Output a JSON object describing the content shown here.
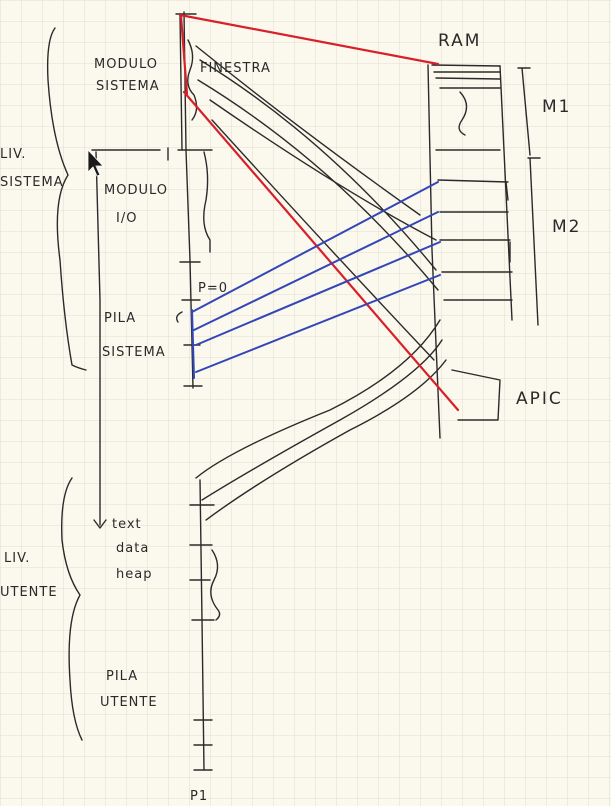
{
  "labels": {
    "modulo_sistema_1": "MODULO",
    "modulo_sistema_2": "SISTEMA",
    "finestra": "FINESTRA",
    "liv_sistema_1": "LIV.",
    "liv_sistema_2": "SISTEMA",
    "modulo_io_1": "MODULO",
    "modulo_io_2": "I/O",
    "p_zero": "P=0",
    "pila_sistema_1": "PILA",
    "pila_sistema_2": "SISTEMA",
    "ram": "RAM",
    "m1": "M1",
    "m2": "M2",
    "apic": "APIC",
    "text": "text",
    "data": "data",
    "heap": "heap",
    "liv_utente_1": "LIV.",
    "liv_utente_2": "UTENTE",
    "pila_utente_1": "PILA",
    "pila_utente_2": "UTENTE",
    "p1": "P1"
  },
  "colors": {
    "paper": "#fbf8ee",
    "grid": "#dcd6c4",
    "ink": "#2a2a2a",
    "red_mapping": "#d8202a",
    "blue_mapping": "#3346b8"
  }
}
